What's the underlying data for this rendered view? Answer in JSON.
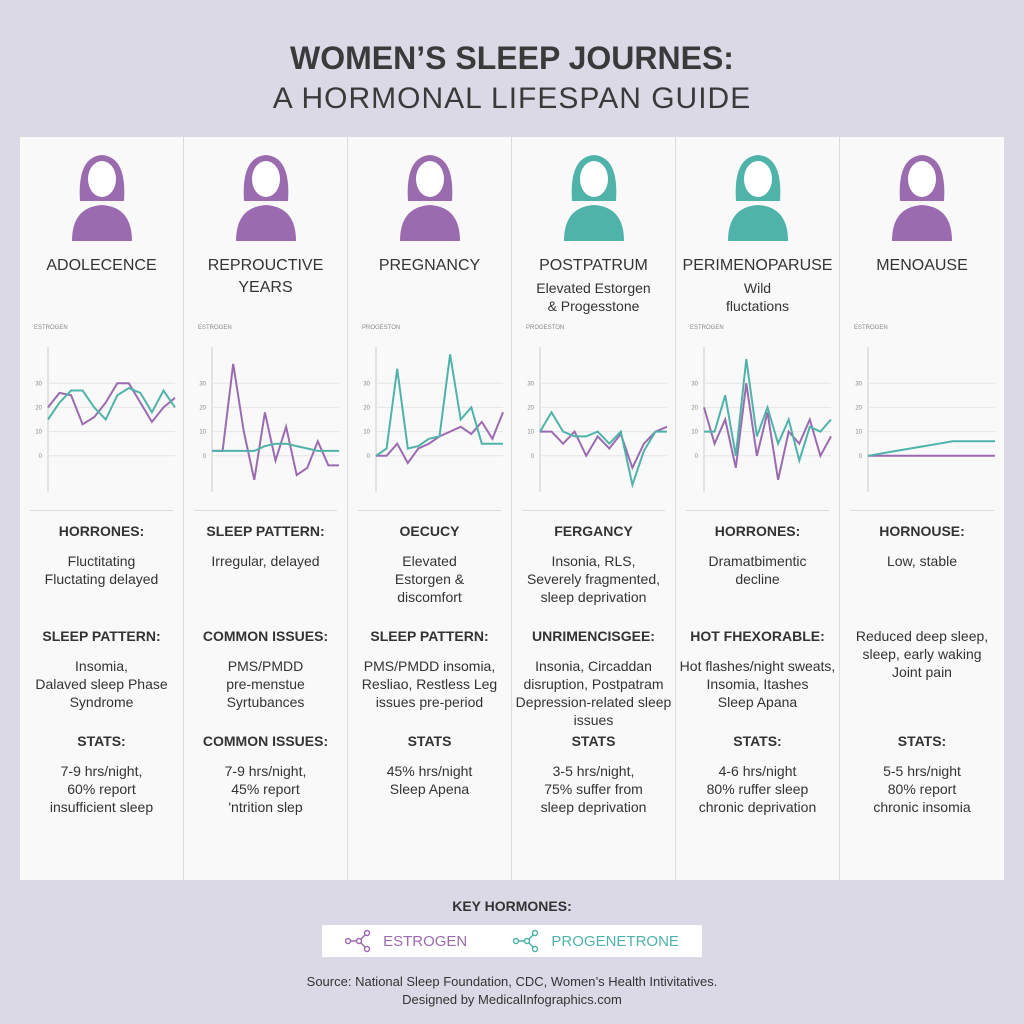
{
  "header": {
    "title": "WOMEN’S SLEEP JOURNES:",
    "subtitle": "A HORMONAL LIFESPAN GUIDE"
  },
  "columns": [
    {
      "name": "ADOLECENCE",
      "icon_color": "#9b6bb0",
      "chart": {
        "type": "line",
        "label": "ESTROGEN",
        "ylim": [
          -15,
          45
        ],
        "yticks": [
          0,
          10,
          20,
          30
        ],
        "series": [
          {
            "color": "#9b6bb0",
            "values": [
              20,
              26,
              25,
              13,
              16,
              22,
              30,
              30,
              22,
              14,
              20,
              24
            ]
          },
          {
            "color": "#4fb3a9",
            "values": [
              15,
              22,
              27,
              27,
              20,
              15,
              25,
              28,
              26,
              18,
              27,
              20
            ]
          }
        ]
      },
      "sections": [
        {
          "heading": "HORRONES:",
          "text": "Fluctitating\nFluctating delayed"
        },
        {
          "heading": "SLEEP PATTERN:",
          "text": "Insomia,\nDalaved sleep Phase\nSyndrome"
        },
        {
          "heading": "STATS:",
          "text": "7-9 hrs/night,\n60% report\ninsufficient sleep"
        }
      ]
    },
    {
      "name": "REPROUCTIVE\nYEARS",
      "icon_color": "#9b6bb0",
      "chart": {
        "type": "line",
        "label": "ESTROGEN",
        "ylim": [
          -15,
          45
        ],
        "yticks": [
          0,
          10,
          20,
          30
        ],
        "series": [
          {
            "color": "#9b6bb0",
            "values": [
              2,
              2,
              38,
              10,
              -10,
              18,
              -2,
              12,
              -8,
              -5,
              6,
              -4,
              -4
            ]
          },
          {
            "color": "#4fb3a9",
            "values": [
              2,
              2,
              2,
              2,
              2,
              4,
              5,
              5,
              4,
              3,
              2,
              2,
              2
            ]
          }
        ]
      },
      "sections": [
        {
          "heading": "SLEEP PATTERN:",
          "text": "Irregular, delayed"
        },
        {
          "heading": "COMMON ISSUES:",
          "text": "PMS/PMDD\npre-menstue\nSyrtubances"
        },
        {
          "heading": "COMMON ISSUES:",
          "text": "7-9 hrs/night,\n45% report\n'ntrition slep"
        }
      ]
    },
    {
      "name": "PREGNANCY",
      "icon_color": "#9b6bb0",
      "chart": {
        "type": "line",
        "label": "PROGESTON",
        "ylim": [
          -15,
          45
        ],
        "yticks": [
          0,
          10,
          20,
          30
        ],
        "series": [
          {
            "color": "#9b6bb0",
            "values": [
              0,
              0,
              5,
              -3,
              3,
              5,
              8,
              10,
              12,
              9,
              14,
              7,
              18
            ]
          },
          {
            "color": "#4fb3a9",
            "values": [
              0,
              3,
              36,
              3,
              4,
              7,
              8,
              42,
              15,
              20,
              5,
              5,
              5
            ]
          }
        ]
      },
      "sections": [
        {
          "heading": "OECUCY",
          "text": "Elevated\nEstorgen &\ndiscomfort"
        },
        {
          "heading": "SLEEP PATTERN:",
          "text": "PMS/PMDD insomia,\nResliao, Restless Leg\nissues pre-period"
        },
        {
          "heading": "STATS",
          "text": "45% hrs/night\nSleep Apena"
        }
      ]
    },
    {
      "name": "POSTPATRUM",
      "icon_color": "#4fb3a9",
      "note": "Elevated Estorgen\n& Progesstone",
      "chart": {
        "type": "line",
        "label": "PROGESTON",
        "ylim": [
          -15,
          45
        ],
        "yticks": [
          0,
          10,
          20,
          30
        ],
        "series": [
          {
            "color": "#9b6bb0",
            "values": [
              10,
              10,
              5,
              10,
              0,
              8,
              3,
              9,
              -5,
              5,
              10,
              12
            ]
          },
          {
            "color": "#4fb3a9",
            "values": [
              10,
              18,
              10,
              8,
              8,
              10,
              5,
              10,
              -12,
              2,
              10,
              10
            ]
          }
        ]
      },
      "sections": [
        {
          "heading": "FERGANCY",
          "text": "Insonia, RLS,\nSeverely fragmented,\nsleep deprivation"
        },
        {
          "heading": "UNRIMENCISGEE:",
          "text": "Insonia, Circaddan\ndisruption, Postpatram\nDepression-related sleep\nissues"
        },
        {
          "heading": "STATS",
          "text": "3-5 hrs/night,\n75% suffer from\nsleep deprivation"
        }
      ]
    },
    {
      "name": "PERIMENOPARUSE",
      "icon_color": "#4fb3a9",
      "note": "Wild\nfluctations",
      "chart": {
        "type": "line",
        "label": "ESTROGEN",
        "ylim": [
          -15,
          45
        ],
        "yticks": [
          0,
          10,
          20,
          30
        ],
        "series": [
          {
            "color": "#9b6bb0",
            "values": [
              20,
              5,
              15,
              -5,
              30,
              0,
              18,
              -10,
              10,
              5,
              15,
              0,
              8
            ]
          },
          {
            "color": "#4fb3a9",
            "values": [
              10,
              10,
              25,
              0,
              40,
              8,
              20,
              5,
              15,
              -2,
              12,
              10,
              15
            ]
          }
        ]
      },
      "sections": [
        {
          "heading": "HORRONES:",
          "text": "Dramatbimentic\ndecline"
        },
        {
          "heading": "HOT FHEXORABLE:",
          "text": "Hot flashes/night sweats,\nInsomia, Itashes\nSleep Apana"
        },
        {
          "heading": "STATS:",
          "text": "4-6 hrs/night\n80% ruffer sleep\nchronic deprivation"
        }
      ]
    },
    {
      "name": "MENOAUSE",
      "icon_color": "#9b6bb0",
      "chart": {
        "type": "line",
        "label": "ESTROGEN",
        "ylim": [
          -15,
          45
        ],
        "yticks": [
          0,
          10,
          20,
          30
        ],
        "series": [
          {
            "color": "#9b6bb0",
            "values": [
              0,
              0,
              0,
              0,
              0,
              0,
              0,
              0,
              0,
              0
            ]
          },
          {
            "color": "#4fb3a9",
            "values": [
              0,
              1,
              2,
              3,
              4,
              5,
              6,
              6,
              6,
              6
            ]
          }
        ]
      },
      "sections": [
        {
          "heading": "HORNOUSE:",
          "text": "Low, stable"
        },
        {
          "text": "Reduced deep sleep,\nsleep, early waking\nJoint pain"
        },
        {
          "heading": "STATS:",
          "text": "5-5 hrs/night\n80% report\nchronic insomia"
        }
      ]
    }
  ],
  "legend": {
    "title": "KEY HORMONES:",
    "items": [
      {
        "name": "ESTROGEN",
        "color": "#9b6bb0"
      },
      {
        "name": "PROGENETRONE",
        "color": "#4fb3a9"
      }
    ]
  },
  "footer": {
    "source": "Source: National Sleep Foundation, CDC, Women’s Health Intivitatives.",
    "credit": "Designed by MedicalInfographics.com"
  }
}
